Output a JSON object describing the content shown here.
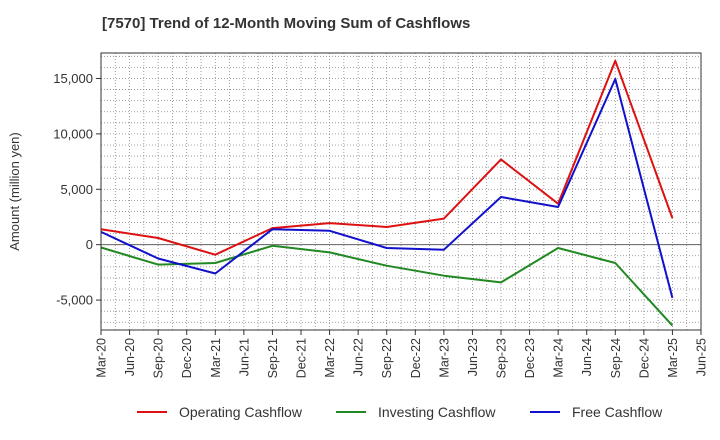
{
  "chart_data": {
    "type": "line",
    "title": "[7570]  Trend of 12-Month Moving Sum of Cashflows",
    "ylabel": "Amount (million yen)",
    "xlabel": "",
    "x_ticks": [
      "Mar-20",
      "Jun-20",
      "Sep-20",
      "Dec-20",
      "Mar-21",
      "Jun-21",
      "Sep-21",
      "Dec-21",
      "Mar-22",
      "Jun-22",
      "Sep-22",
      "Dec-22",
      "Mar-23",
      "Jun-23",
      "Sep-23",
      "Dec-23",
      "Mar-24",
      "Jun-24",
      "Sep-24",
      "Dec-24",
      "Mar-25",
      "Jun-25"
    ],
    "y_ticks": [
      15000,
      10000,
      5000,
      0,
      -5000
    ],
    "y_tick_labels": [
      "15,000",
      "10,000",
      "5,000",
      "0",
      "-5,000"
    ],
    "ylim": [
      -7700,
      17300
    ],
    "grid": true,
    "legend_position": "bottom",
    "series": [
      {
        "name": "Operating Cashflow",
        "color": "#dd1111",
        "points": [
          [
            "Mar-20",
            1400
          ],
          [
            "Sep-20",
            600
          ],
          [
            "Mar-21",
            -900
          ],
          [
            "Sep-21",
            1500
          ],
          [
            "Mar-22",
            1950
          ],
          [
            "Sep-22",
            1600
          ],
          [
            "Mar-23",
            2350
          ],
          [
            "Sep-23",
            7700
          ],
          [
            "Mar-24",
            3700
          ],
          [
            "Sep-24",
            16600
          ],
          [
            "Mar-25",
            2400
          ]
        ]
      },
      {
        "name": "Investing Cashflow",
        "color": "#228822",
        "points": [
          [
            "Mar-20",
            -250
          ],
          [
            "Sep-20",
            -1800
          ],
          [
            "Mar-21",
            -1650
          ],
          [
            "Sep-21",
            -100
          ],
          [
            "Mar-22",
            -700
          ],
          [
            "Sep-22",
            -1900
          ],
          [
            "Mar-23",
            -2800
          ],
          [
            "Sep-23",
            -3400
          ],
          [
            "Mar-24",
            -300
          ],
          [
            "Sep-24",
            -1650
          ],
          [
            "Mar-25",
            -7300
          ]
        ]
      },
      {
        "name": "Free Cashflow",
        "color": "#1111cc",
        "points": [
          [
            "Mar-20",
            1150
          ],
          [
            "Sep-20",
            -1250
          ],
          [
            "Mar-21",
            -2600
          ],
          [
            "Sep-21",
            1400
          ],
          [
            "Mar-22",
            1250
          ],
          [
            "Sep-22",
            -300
          ],
          [
            "Mar-23",
            -450
          ],
          [
            "Sep-23",
            4300
          ],
          [
            "Mar-24",
            3400
          ],
          [
            "Sep-24",
            14950
          ],
          [
            "Mar-25",
            -4800
          ]
        ]
      }
    ]
  }
}
